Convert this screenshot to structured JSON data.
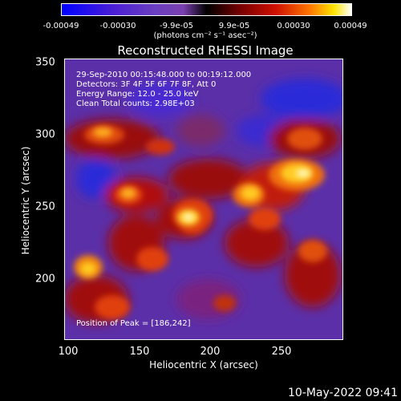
{
  "colorbar": {
    "ticks": [
      "-0.00049",
      "-0.00030",
      "-9.9e-05",
      "9.9e-05",
      "0.00030",
      "0.00049"
    ],
    "units_label": "(photons cm⁻² s⁻¹ asec⁻²)"
  },
  "title": "Reconstructed RHESSI Image",
  "info": {
    "time_range": "29-Sep-2010 00:15:48.000 to 00:19:12.000",
    "detectors": "Detectors: 3F 4F 5F 6F 7F 8F, Att 0",
    "energy": "Energy Range: 12.0 - 25.0 keV",
    "method": "Clean     Total counts: 2.98E+03"
  },
  "peak_label": "Position of Peak = [186,242]",
  "axes": {
    "x_label": "Heliocentric X (arcsec)",
    "y_label": "Heliocentric Y (arcsec)",
    "x_ticks": [
      "100",
      "150",
      "200",
      "250"
    ],
    "y_ticks": [
      "350",
      "300",
      "250",
      "200"
    ]
  },
  "timestamp": "10-May-2022 09:41"
}
